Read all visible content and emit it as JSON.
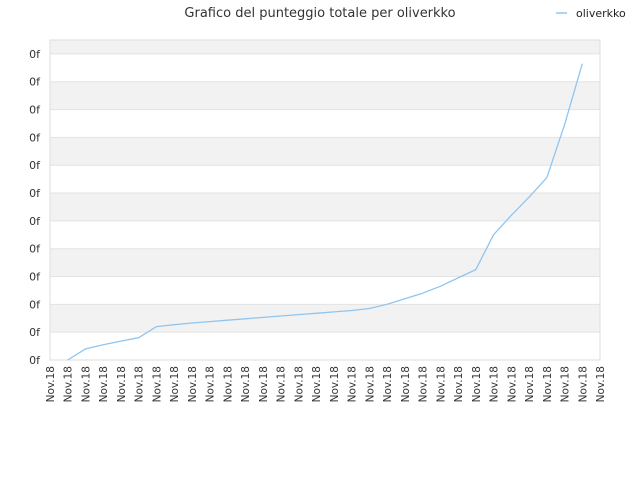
{
  "chart_data": {
    "type": "line",
    "title": "Grafico del punteggio totale per oliverkko",
    "xlabel": "",
    "ylabel": "",
    "legend_position": "top-right",
    "grid": true,
    "band_colors": [
      "#f2f2f2",
      "#ffffff"
    ],
    "ylim": [
      0,
      11.5
    ],
    "y_ticks": [
      0,
      1,
      2,
      3,
      4,
      5,
      6,
      7,
      8,
      9,
      10,
      11
    ],
    "y_tick_labels": [
      "0f",
      "0f",
      "0f",
      "0f",
      "0f",
      "0f",
      "0f",
      "0f",
      "0f",
      "0f",
      "0f",
      "0f"
    ],
    "categories": [
      "Nov.18",
      "Nov.18",
      "Nov.18",
      "Nov.18",
      "Nov.18",
      "Nov.18",
      "Nov.18",
      "Nov.18",
      "Nov.18",
      "Nov.18",
      "Nov.18",
      "Nov.18",
      "Nov.18",
      "Nov.18",
      "Nov.18",
      "Nov.18",
      "Nov.18",
      "Nov.18",
      "Nov.18",
      "Nov.18",
      "Nov.18",
      "Nov.18",
      "Nov.18",
      "Nov.18",
      "Nov.18",
      "Nov.18",
      "Nov.18",
      "Nov.18",
      "Nov.18",
      "Nov.18",
      "Nov.18",
      "Nov.18"
    ],
    "series": [
      {
        "name": "oliverkko",
        "color": "#90c5f0",
        "values": [
          null,
          0.0,
          0.4,
          0.55,
          0.68,
          0.8,
          1.2,
          1.27,
          1.33,
          1.38,
          1.43,
          1.48,
          1.53,
          1.58,
          1.63,
          1.68,
          1.73,
          1.78,
          1.85,
          2.0,
          2.2,
          2.4,
          2.65,
          2.95,
          3.25,
          4.5,
          5.2,
          5.85,
          6.55,
          8.45,
          10.65,
          null
        ]
      }
    ]
  }
}
